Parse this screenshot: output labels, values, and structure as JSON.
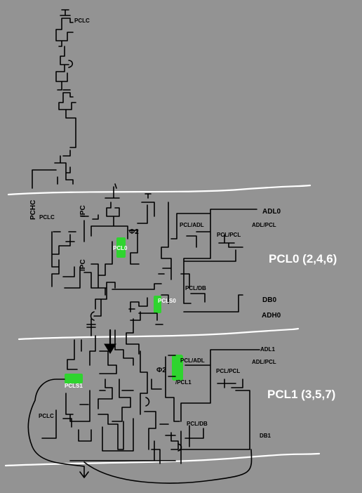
{
  "labels": {
    "pclc_top": "PCLC",
    "pchc": "PCHC",
    "pclc_mid": "PCLC",
    "ipc_upper": "IPC",
    "ipc_lower": "IPC",
    "phi2_upper": "Φ2",
    "pcl0": "PCL0",
    "pcls0": "PCLS0",
    "pcl_adl_0": "PCL/ADL",
    "pcl_pcl_0": "PCL/PCL",
    "adl0": "ADL0",
    "adl_pcl_0": "ADL/PCL",
    "pcl_db_0": "PCL/DB",
    "db0": "DB0",
    "adh0": "ADH0",
    "adl1": "ADL1",
    "pcl_adl_1": "PCL/ADL",
    "adl_pcl_1": "ADL/PCL",
    "pcl_pcl_1": "PCL/PCL",
    "phi2_lower": "Φ2",
    "pcl1_inv": "/PCL1",
    "pcls1": "PCLS1",
    "pclc_low": "PCLC",
    "pcl_db_1": "PCL/DB",
    "db1": "DB1",
    "bit0_title": "PCL0 (2,4,6)",
    "bit1_title": "PCL1 (3,5,7)"
  },
  "colors": {
    "background": "#939393",
    "wire": "#000000",
    "highlight": "#2fd42f",
    "boundary": "#ffffff",
    "title_text": "#ffffff"
  },
  "icons": {
    "flow_arrow": "arrow-down-icon"
  }
}
